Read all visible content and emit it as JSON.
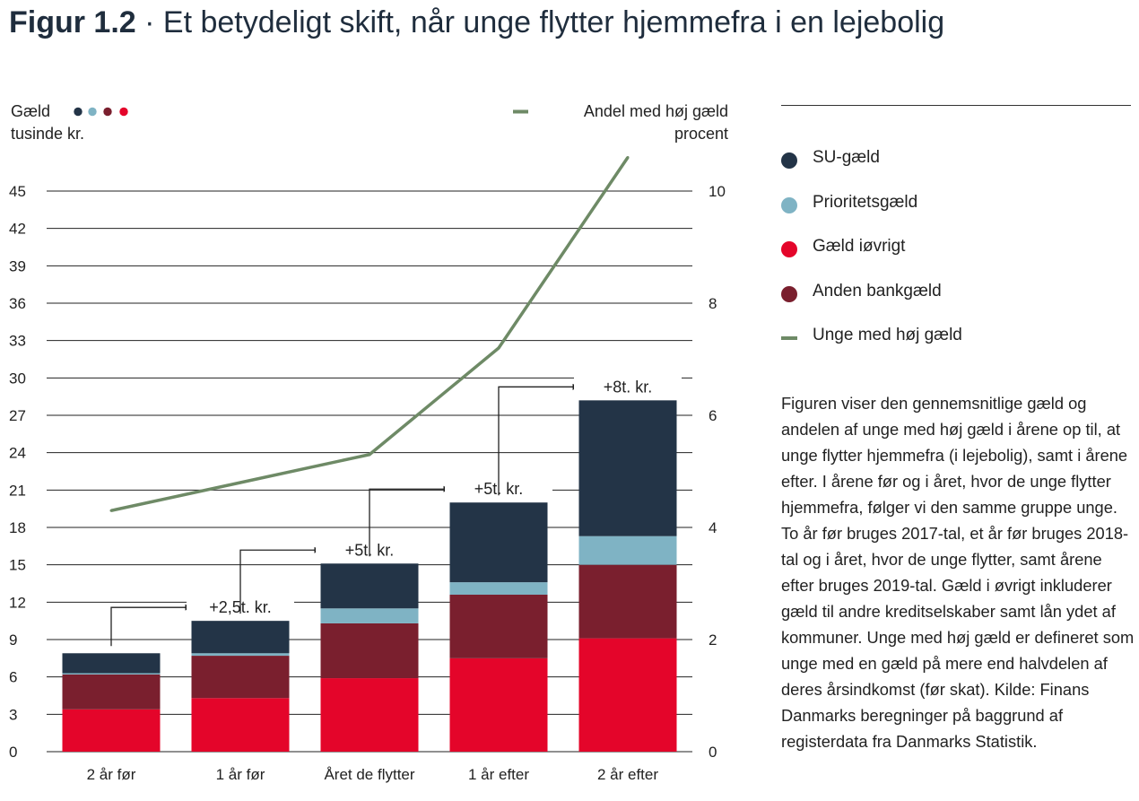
{
  "title": {
    "prefix": "Figur 1.2",
    "sep": " · ",
    "text": "Et betydeligt skift, når unge flytter hjemmefra i en lejebolig"
  },
  "left_axis": {
    "label_line1": "Gæld",
    "label_line2": "tusinde kr."
  },
  "right_axis": {
    "label_line1": "Andel med høj gæld",
    "label_line2": "procent"
  },
  "legend": [
    {
      "label": "SU-gæld",
      "color": "#233447",
      "shape": "dot"
    },
    {
      "label": "Prioritetsgæld",
      "color": "#7fb3c4",
      "shape": "dot"
    },
    {
      "label": "Gæld iøvrigt",
      "color": "#e4052a",
      "shape": "dot"
    },
    {
      "label": "Anden bankgæld",
      "color": "#7a1f2e",
      "shape": "dot"
    },
    {
      "label": "Unge med høj gæld",
      "color": "#6e8a66",
      "shape": "line"
    }
  ],
  "note": "Figuren viser den gennemsnitlige gæld og andelen af unge med høj gæld i årene op til, at unge flytter hjemmefra (i lejebolig), samt i årene efter. I årene før og i året, hvor de unge flytter hjemmefra, følger vi den samme gruppe unge. To år før bruges 2017-tal, et år før bruges 2018-tal og i året, hvor de unge flytter, samt årene efter bruges 2019-tal. Gæld i øvrigt inkluderer gæld til andre kreditselskaber samt lån ydet af kommuner. Unge med høj gæld er defineret som unge med en gæld på mere end halvdelen af deres årsindkomst (før skat). Kilde: Finans Danmarks beregninger på baggrund af registerdata fra Danmarks Statistik.",
  "chart_data": {
    "type": "bar",
    "stacked": true,
    "categories": [
      "2 år før",
      "1 år før",
      "Året de flytter",
      "1 år efter",
      "2 år efter"
    ],
    "series": [
      {
        "name": "Gæld iøvrigt",
        "color": "#e4052a",
        "values": [
          3.4,
          4.3,
          5.9,
          7.5,
          9.1
        ]
      },
      {
        "name": "Anden bankgæld",
        "color": "#7a1f2e",
        "values": [
          2.8,
          3.4,
          4.4,
          5.1,
          5.9
        ]
      },
      {
        "name": "Prioritetsgæld",
        "color": "#7fb3c4",
        "values": [
          0.1,
          0.2,
          1.2,
          1.0,
          2.3
        ]
      },
      {
        "name": "SU-gæld",
        "color": "#233447",
        "values": [
          1.6,
          2.6,
          3.6,
          6.4,
          10.9
        ]
      }
    ],
    "line": {
      "name": "Unge med høj gæld",
      "color": "#6e8a66",
      "axis": "right",
      "values": [
        4.3,
        4.8,
        5.3,
        7.2,
        10.6
      ]
    },
    "y_left": {
      "ylim": [
        0,
        45
      ],
      "ticks": [
        0,
        3,
        6,
        9,
        12,
        15,
        18,
        21,
        24,
        27,
        30,
        33,
        36,
        39,
        42,
        45
      ]
    },
    "y_right": {
      "ylim": [
        0,
        10
      ],
      "ticks": [
        0,
        2,
        4,
        6,
        8,
        10
      ]
    },
    "annotations": [
      {
        "from": 0,
        "to": 1,
        "label": "+2,5t. kr."
      },
      {
        "from": 1,
        "to": 2,
        "label": "+5t. kr."
      },
      {
        "from": 2,
        "to": 3,
        "label": "+5t. kr."
      },
      {
        "from": 3,
        "to": 4,
        "label": "+8t. kr."
      }
    ],
    "grid": true
  }
}
